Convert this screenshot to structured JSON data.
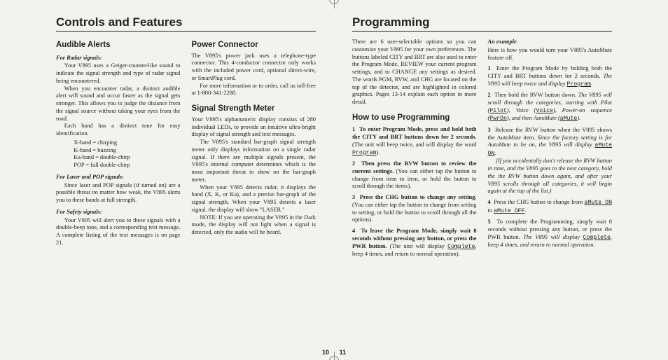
{
  "left": {
    "running": "Controls and Features",
    "folio": "10",
    "h_audible": "Audible Alerts",
    "sub_radar": "For Radar signals:",
    "p_radar1": "Your V895 uses a Geiger-counter-like sound to indicate the signal strength and type of radar signal being encountered.",
    "p_radar2": "When you encounter radar, a distinct audible alert will sound and occur faster as the signal gets stronger. This allows you to judge the distance from the signal source without taking your eyes from the road.",
    "p_radar3": "Each band has a distinct tone for easy identification.",
    "bands1": "X-band = chirping",
    "bands2": "K-band = buzzing",
    "bands3": "Ka-band = double-chirp",
    "bands4": "POP = full double-chirp",
    "sub_laser": "For Laser and POP signals:",
    "p_laser": "Since laser and POP signals (if turned on) are a possible threat no matter how weak, the V895 alerts you to these bands at full strength.",
    "sub_safety": "For Safety signals:",
    "p_safety": "Your V895 will alert you to these signals with a double-beep tone, and a corresponding text message. A complete listing of the text messages is on page 21.",
    "h_power": "Power Connector",
    "p_power1": "The V895's power jack uses a telephone-type connector. This 4-conductor connector only works with the included power cord, optional direct-wire, or SmartPlug cord.",
    "p_power2": "For more information or to order, call us toll-free at 1-800-341-2288.",
    "h_signal": "Signal Strength Meter",
    "p_sig1": "Your V895's alphanumeric display consists of 280 individual LEDs, to provide an intuitive ultra-bright display of signal strength and text messages.",
    "p_sig2": "The V895's standard bar-graph signal strength meter only displays information on a single radar signal. If there are multiple signals present, the V895's internal computer determines which is the most important threat to show on the bar-graph meter.",
    "p_sig3": "When your V895 detects radar, it displays the band (X, K, or Ka), and a precise bar-graph of the signal strength. When your V895 detects a laser signal, the display will show \"LASER.\"",
    "p_sig4": "NOTE: If you are operating the V895 in the Dark mode, the display will not light when a signal is detected, only the audio will be heard."
  },
  "right": {
    "running": "Programming",
    "folio": "11",
    "p_intro": "There are 6 user-selectable options so you can customize your V895 for your own preferences. The buttons labeled CITY and BRT are also used to enter the Program Mode, REVIEW your current program settings, and to CHANGE any settings as desired. The words PGM, RVW, and CHG are located on the top of the detector, and are highlighted in colored graphics. Pages 13-14 explain each option in more detail.",
    "h_how": "How to use Programming",
    "s1_lead": "To enter Program Mode, press and hold both the CITY and BRT buttons down for 2 seconds.",
    "s1_tail": " (The unit will beep twice, and will display the word ",
    "mono_program": "Program",
    "s1_end": ").",
    "s2_lead": "Then press the RVW button to review the current settings.",
    "s2_tail": " (You can either tap the button to change from item to item, or hold the button to scroll through the items).",
    "s3_lead": "Press the CHG button to change any setting.",
    "s3_tail": " (You can either tap the button to change from setting to setting, or hold the button to scroll through all the options).",
    "s4_lead": "To leave the Program Mode, simply wait 8 seconds without pressing any button, or press the PWR button.",
    "s4_tail": " (The unit will display ",
    "mono_complete": "Complete",
    "s4_end": ", beep 4 times, and return to normal operation).",
    "h_example": "An example",
    "p_ex_intro": "Here is how you would turn your V895's AutoMute feature off.",
    "e1a": "Enter the Program Mode by holding both the CITY and BRT buttons down for 2 seconds. ",
    "e1b": "The V895 will beep twice and display ",
    "e2a": "Then hold the RVW button down. ",
    "e2b": "The V895 will scroll through the categories, starting with Pilot (",
    "mono_pilot": "Pilot",
    "e2c": "), Voice (",
    "mono_voice": "Voice",
    "e2d": "), Power-on sequence (",
    "mono_pwron": "PwrOn",
    "e2e": "), and then AutoMute (",
    "mono_amute": "aMute",
    "e2f": ").",
    "e3a": "Release the RVW button when the V895 shows the AutoMute item. ",
    "e3b": "Since the factory setting is for AutoMute to be on, the V895 will display ",
    "mono_amute_on": "aMute ON",
    "e3_par": "(If you accidentally don't release the RVW button in time, and the V895 goes to the next category, hold the the RVW button down again, and after your V895 scrolls through all categories, it will begin again at the top of the list.)",
    "e4a": "Press the CHG button to change from ",
    "e4b": " to ",
    "mono_amute_off": "aMute OFF",
    "e5a": "To complete the Programming, simply wait 8 seconds without pressing any button, or press the PWR button. ",
    "e5b": "The V895 will display ",
    "e5c": ", beep 4 times, and return to normal operation."
  }
}
